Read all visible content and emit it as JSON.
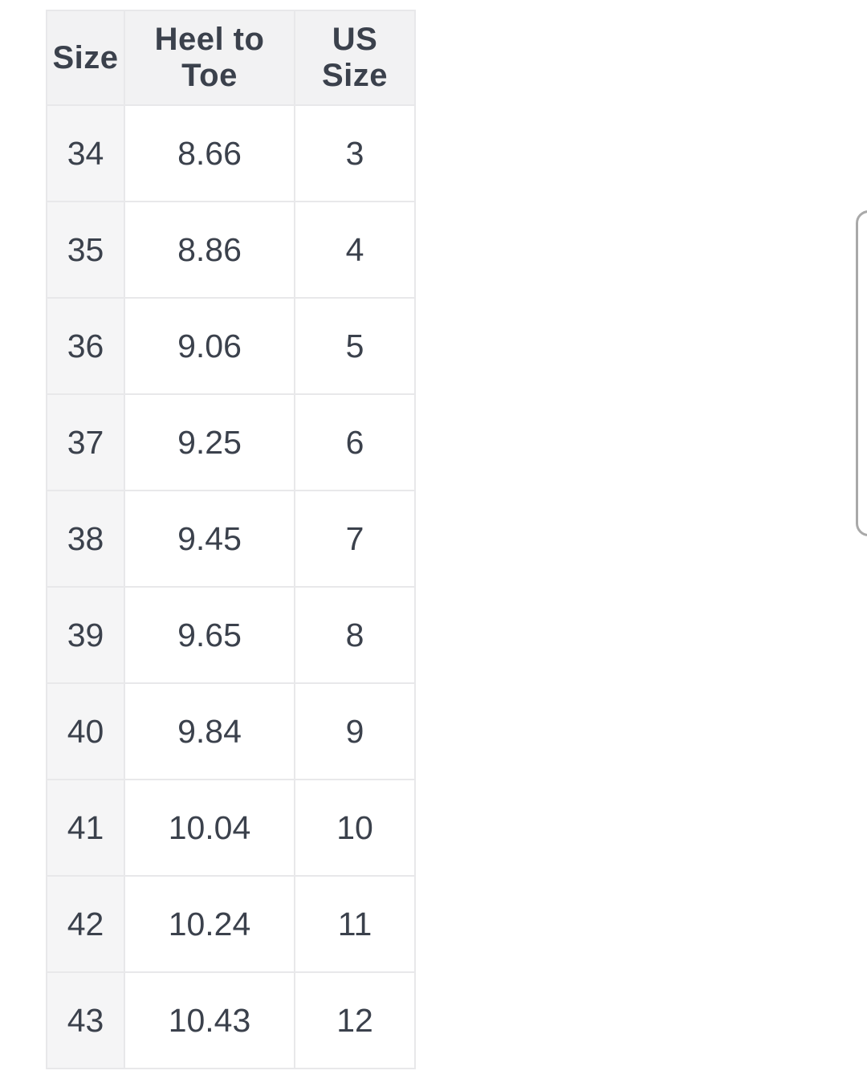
{
  "page": {
    "background_color": "#ffffff"
  },
  "table": {
    "columns": [
      "Size",
      "Heel to Toe",
      "US Size"
    ],
    "rows": [
      {
        "size": "34",
        "heel_to_toe": "8.66",
        "us_size": "3"
      },
      {
        "size": "35",
        "heel_to_toe": "8.86",
        "us_size": "4"
      },
      {
        "size": "36",
        "heel_to_toe": "9.06",
        "us_size": "5"
      },
      {
        "size": "37",
        "heel_to_toe": "9.25",
        "us_size": "6"
      },
      {
        "size": "38",
        "heel_to_toe": "9.45",
        "us_size": "7"
      },
      {
        "size": "39",
        "heel_to_toe": "9.65",
        "us_size": "8"
      },
      {
        "size": "40",
        "heel_to_toe": "9.84",
        "us_size": "9"
      },
      {
        "size": "41",
        "heel_to_toe": "10.04",
        "us_size": "10"
      },
      {
        "size": "42",
        "heel_to_toe": "10.24",
        "us_size": "11"
      },
      {
        "size": "43",
        "heel_to_toe": "10.43",
        "us_size": "12"
      }
    ],
    "colors": {
      "header_background": "#f2f2f3",
      "size_column_background": "#f5f5f6",
      "cell_background": "#ffffff",
      "border": "#e8e8ea",
      "text": "#3b414c"
    }
  },
  "scrollbar": {
    "border_color": "#a9a9a9"
  }
}
